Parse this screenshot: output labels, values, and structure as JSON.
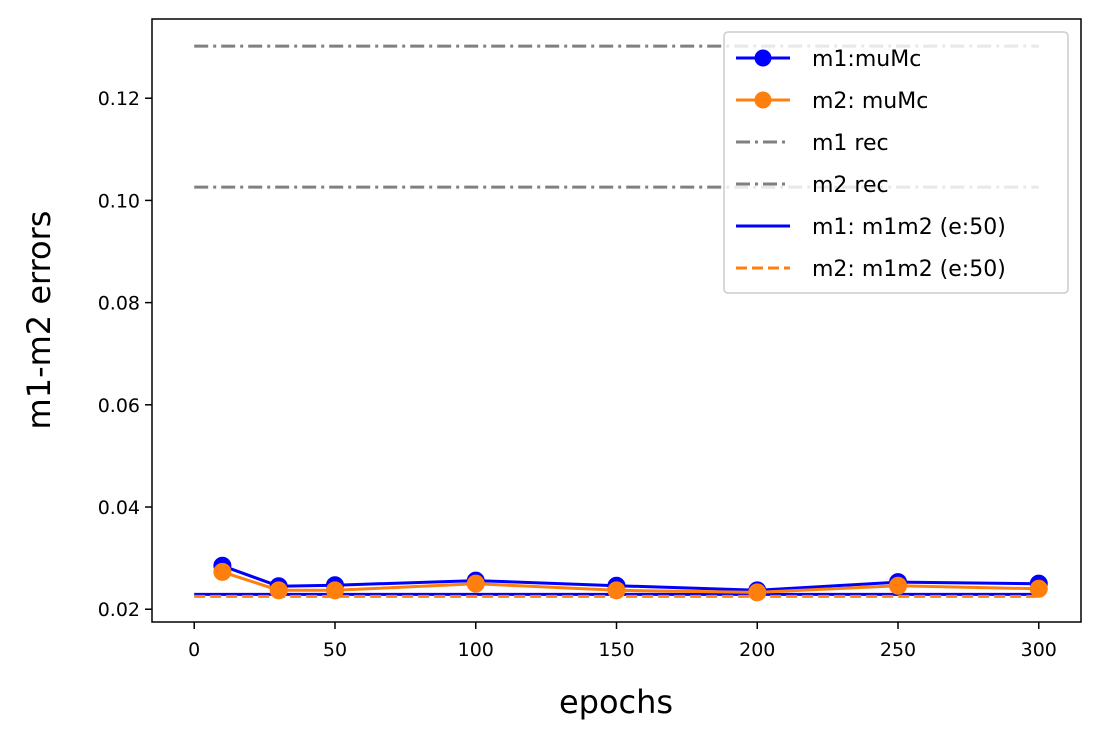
{
  "chart_data": {
    "type": "line",
    "title": "",
    "xlabel": "epochs",
    "ylabel": "m1-m2 errors",
    "xlim": [
      -15,
      315
    ],
    "ylim": [
      0.0175,
      0.1355
    ],
    "xticks": [
      0,
      50,
      100,
      150,
      200,
      250,
      300
    ],
    "xtick_labels": [
      "0",
      "50",
      "100",
      "150",
      "200",
      "250",
      "300"
    ],
    "yticks": [
      0.02,
      0.04,
      0.06,
      0.08,
      0.1,
      0.12
    ],
    "ytick_labels": [
      "0.02",
      "0.04",
      "0.06",
      "0.08",
      "0.10",
      "0.12"
    ],
    "grid": false,
    "legend_position": "top-right",
    "series": [
      {
        "name": "m1:muMc",
        "color": "#0000ff",
        "style": "solid",
        "marker": "circle",
        "x": [
          10,
          30,
          50,
          100,
          150,
          200,
          250,
          300
        ],
        "y": [
          0.0285,
          0.0245,
          0.0247,
          0.0256,
          0.0246,
          0.0237,
          0.0253,
          0.025
        ]
      },
      {
        "name": "m2: muMc",
        "color": "#ff7f0e",
        "style": "solid",
        "marker": "circle",
        "x": [
          10,
          30,
          50,
          100,
          150,
          200,
          250,
          300
        ],
        "y": [
          0.0273,
          0.0237,
          0.0237,
          0.025,
          0.0237,
          0.0233,
          0.0246,
          0.024
        ]
      },
      {
        "name": "m1 rec",
        "color": "#808080",
        "style": "dashdot",
        "marker": "none",
        "x": [
          0,
          300
        ],
        "y": [
          0.1302,
          0.1302
        ]
      },
      {
        "name": "m2 rec",
        "color": "#808080",
        "style": "dashdot",
        "marker": "none",
        "x": [
          0,
          300
        ],
        "y": [
          0.1026,
          0.1026
        ]
      },
      {
        "name": "m1: m1m2 (e:50)",
        "color": "#0000ff",
        "style": "solid",
        "marker": "none",
        "x": [
          0,
          300
        ],
        "y": [
          0.0229,
          0.0229
        ]
      },
      {
        "name": "m2: m1m2 (e:50)",
        "color": "#ff7f0e",
        "style": "dashed",
        "marker": "none",
        "x": [
          0,
          300
        ],
        "y": [
          0.0225,
          0.0225
        ]
      }
    ]
  }
}
